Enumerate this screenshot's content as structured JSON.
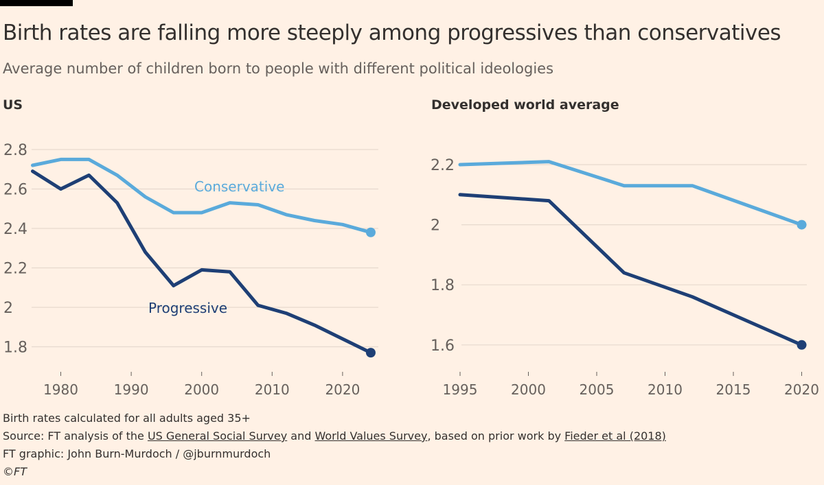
{
  "title": "Birth rates are falling more steeply among progressives than conservatives",
  "subtitle": "Average number of children born to people with different political ideologies",
  "colors": {
    "background": "#fff1e5",
    "conservative": "#5aaadb",
    "progressive": "#1e3f75",
    "grid": "#e6d9ce",
    "text": "#33302e"
  },
  "chart_data": [
    {
      "type": "line",
      "title": "US",
      "xlim": [
        1976,
        2024
      ],
      "ylim": [
        1.7,
        2.85
      ],
      "x_ticks": [
        1980,
        1990,
        2000,
        2010,
        2020
      ],
      "y_ticks": [
        1.8,
        2,
        2.2,
        2.4,
        2.6,
        2.8
      ],
      "y_tick_labels": [
        "1.8",
        "2",
        "2.2",
        "2.4",
        "2.6",
        "2.8"
      ],
      "grid": true,
      "x": [
        1976,
        1980,
        1984,
        1988,
        1992,
        1996,
        2000,
        2004,
        2008,
        2012,
        2016,
        2020,
        2024
      ],
      "series": [
        {
          "name": "Conservative",
          "color": "#5aaadb",
          "values": [
            2.72,
            2.75,
            2.75,
            2.67,
            2.56,
            2.48,
            2.48,
            2.53,
            2.52,
            2.47,
            2.44,
            2.42,
            2.38
          ]
        },
        {
          "name": "Progressive",
          "color": "#1e3f75",
          "values": [
            2.69,
            2.6,
            2.67,
            2.53,
            2.28,
            2.11,
            2.19,
            2.18,
            2.01,
            1.97,
            1.91,
            1.84,
            1.77
          ]
        }
      ]
    },
    {
      "type": "line",
      "title": "Developed world average",
      "xlim": [
        1995,
        2020
      ],
      "ylim": [
        1.52,
        2.28
      ],
      "x_ticks": [
        1995,
        2000,
        2005,
        2010,
        2015,
        2020
      ],
      "y_ticks": [
        1.6,
        1.8,
        2,
        2.2
      ],
      "y_tick_labels": [
        "1.6",
        "1.8",
        "2",
        "2.2"
      ],
      "grid": true,
      "x": [
        1995,
        2001.5,
        2007,
        2012,
        2020
      ],
      "series": [
        {
          "color": "#5aaadb",
          "values": [
            2.2,
            2.21,
            2.13,
            2.13,
            2.0
          ]
        },
        {
          "color": "#1e3f75",
          "values": [
            2.1,
            2.08,
            1.84,
            1.76,
            1.6
          ]
        }
      ]
    }
  ],
  "footer": {
    "note": "Birth rates calculated for all adults aged 35+",
    "source_prefix": "Source: FT analysis of the ",
    "source_link1": "US General Social Survey",
    "source_and": " and ",
    "source_link2": "World Values Survey",
    "source_mid": ", based on prior work by ",
    "source_link3": "Fieder et al (2018)",
    "credit": "FT graphic: John Burn-Murdoch / @jburnmurdoch",
    "copyright": "©FT"
  }
}
